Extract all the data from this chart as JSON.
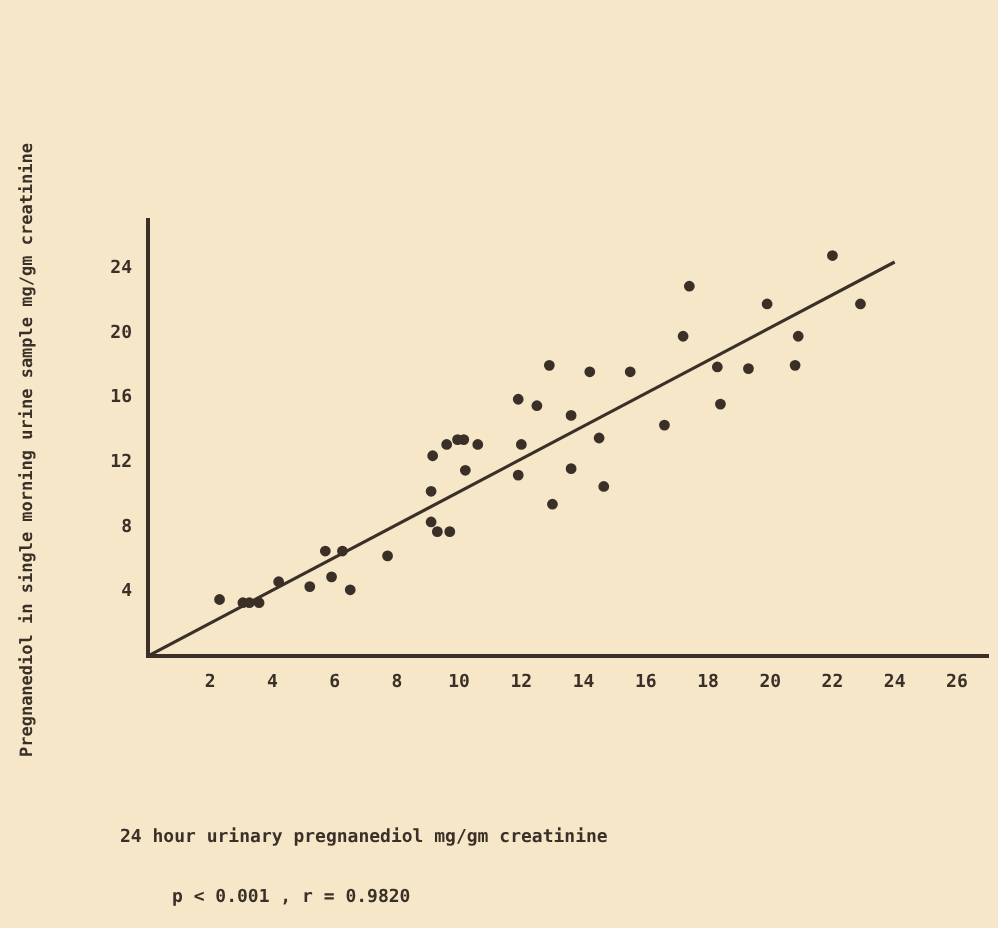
{
  "chart_data": {
    "type": "scatter",
    "ylabel": "Pregnanediol in single morning urine sample mg/gm creatinine",
    "annotations": [
      "24 hour urinary pregnanediol mg/gm creatinine",
      "p < 0.001 , r = 0.9820"
    ],
    "xlim": [
      0,
      27
    ],
    "ylim": [
      0,
      27
    ],
    "xticks": [
      2,
      4,
      6,
      8,
      10,
      12,
      14,
      16,
      18,
      20,
      22,
      24,
      26
    ],
    "yticks": [
      4,
      8,
      12,
      16,
      20,
      24
    ],
    "grid": false,
    "legend": false,
    "marker": "circle",
    "series": [
      {
        "color": "#3a3028",
        "x": [
          2.3,
          3.05,
          3.26,
          3.57,
          4.2,
          5.2,
          5.7,
          5.9,
          6.25,
          6.5,
          7.7,
          9.1,
          9.1,
          9.15,
          9.3,
          9.7,
          9.6,
          9.95,
          10.15,
          10.2,
          10.6,
          11.9,
          12.0,
          11.9,
          12.5,
          12.9,
          13.0,
          13.6,
          13.6,
          14.2,
          14.5,
          14.65,
          15.5,
          16.6,
          17.2,
          17.4,
          18.3,
          18.4,
          19.3,
          19.9,
          20.8,
          20.9,
          22.0,
          22.9
        ],
        "values": [
          3.5,
          3.3,
          3.3,
          3.3,
          4.6,
          4.3,
          6.5,
          4.9,
          6.5,
          4.1,
          6.2,
          10.2,
          8.3,
          12.4,
          7.7,
          7.7,
          13.1,
          13.4,
          13.4,
          11.5,
          13.1,
          15.9,
          13.1,
          11.2,
          15.5,
          18.0,
          9.4,
          14.9,
          11.6,
          17.6,
          13.5,
          10.5,
          17.6,
          14.3,
          19.8,
          22.9,
          17.9,
          15.6,
          17.8,
          21.8,
          18.0,
          19.8,
          24.8,
          21.8
        ]
      },
      {
        "type": "line",
        "color": "#3a3028",
        "marker": "none",
        "x": [
          0,
          24
        ],
        "values": [
          0,
          24.4
        ]
      }
    ]
  }
}
